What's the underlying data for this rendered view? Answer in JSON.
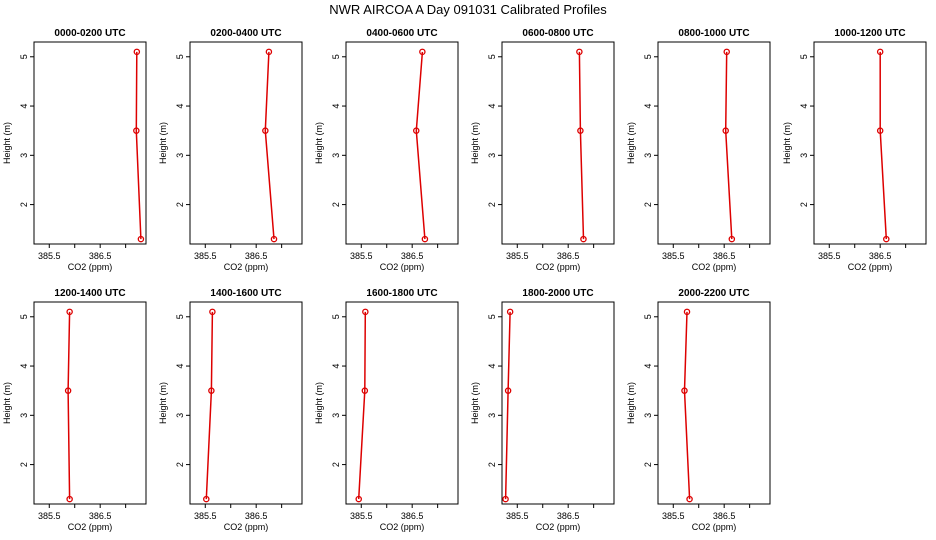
{
  "title": "NWR AIRCOA A  Day 091031  Calibrated Profiles",
  "colors": {
    "series": "#dd0000",
    "axis": "#000000",
    "background": "#ffffff"
  },
  "chart_data": [
    {
      "type": "line",
      "title": "0000-0200 UTC",
      "xlabel": "CO2 (ppm)",
      "ylabel": "Height (m)",
      "xlim": [
        385.2,
        387.4
      ],
      "ylim": [
        1.2,
        5.3
      ],
      "xticks": [
        385.5,
        386.5
      ],
      "yticks": [
        2,
        3,
        4,
        5
      ],
      "x": [
        387.3,
        387.21,
        387.22
      ],
      "y": [
        1.3,
        3.5,
        5.1
      ]
    },
    {
      "type": "line",
      "title": "0200-0400 UTC",
      "xlabel": "CO2 (ppm)",
      "ylabel": "Height (m)",
      "xlim": [
        385.2,
        387.4
      ],
      "ylim": [
        1.2,
        5.3
      ],
      "xticks": [
        385.5,
        386.5
      ],
      "yticks": [
        2,
        3,
        4,
        5
      ],
      "x": [
        386.85,
        386.68,
        386.75
      ],
      "y": [
        1.3,
        3.5,
        5.1
      ]
    },
    {
      "type": "line",
      "title": "0400-0600 UTC",
      "xlabel": "CO2 (ppm)",
      "ylabel": "Height (m)",
      "xlim": [
        385.2,
        387.4
      ],
      "ylim": [
        1.2,
        5.3
      ],
      "xticks": [
        385.5,
        386.5
      ],
      "yticks": [
        2,
        3,
        4,
        5
      ],
      "x": [
        386.75,
        386.58,
        386.7
      ],
      "y": [
        1.3,
        3.5,
        5.1
      ]
    },
    {
      "type": "line",
      "title": "0600-0800 UTC",
      "xlabel": "CO2 (ppm)",
      "ylabel": "Height (m)",
      "xlim": [
        385.2,
        387.4
      ],
      "ylim": [
        1.2,
        5.3
      ],
      "xticks": [
        385.5,
        386.5
      ],
      "yticks": [
        2,
        3,
        4,
        5
      ],
      "x": [
        386.8,
        386.74,
        386.72
      ],
      "y": [
        1.3,
        3.5,
        5.1
      ]
    },
    {
      "type": "line",
      "title": "0800-1000 UTC",
      "xlabel": "CO2 (ppm)",
      "ylabel": "Height (m)",
      "xlim": [
        385.2,
        387.4
      ],
      "ylim": [
        1.2,
        5.3
      ],
      "xticks": [
        385.5,
        386.5
      ],
      "yticks": [
        2,
        3,
        4,
        5
      ],
      "x": [
        386.65,
        386.53,
        386.55
      ],
      "y": [
        1.3,
        3.5,
        5.1
      ]
    },
    {
      "type": "line",
      "title": "1000-1200 UTC",
      "xlabel": "CO2 (ppm)",
      "ylabel": "Height (m)",
      "xlim": [
        385.2,
        387.4
      ],
      "ylim": [
        1.2,
        5.3
      ],
      "xticks": [
        385.5,
        386.5
      ],
      "yticks": [
        2,
        3,
        4,
        5
      ],
      "x": [
        386.62,
        386.5,
        386.5
      ],
      "y": [
        1.3,
        3.5,
        5.1
      ]
    },
    {
      "type": "line",
      "title": "1200-1400 UTC",
      "xlabel": "CO2 (ppm)",
      "ylabel": "Height (m)",
      "xlim": [
        385.2,
        387.4
      ],
      "ylim": [
        1.2,
        5.3
      ],
      "xticks": [
        385.5,
        386.5
      ],
      "yticks": [
        2,
        3,
        4,
        5
      ],
      "x": [
        385.9,
        385.87,
        385.9
      ],
      "y": [
        1.3,
        3.5,
        5.1
      ]
    },
    {
      "type": "line",
      "title": "1400-1600 UTC",
      "xlabel": "CO2 (ppm)",
      "ylabel": "Height (m)",
      "xlim": [
        385.2,
        387.4
      ],
      "ylim": [
        1.2,
        5.3
      ],
      "xticks": [
        385.5,
        386.5
      ],
      "yticks": [
        2,
        3,
        4,
        5
      ],
      "x": [
        385.52,
        385.62,
        385.64
      ],
      "y": [
        1.3,
        3.5,
        5.1
      ]
    },
    {
      "type": "line",
      "title": "1600-1800 UTC",
      "xlabel": "CO2 (ppm)",
      "ylabel": "Height (m)",
      "xlim": [
        385.2,
        387.4
      ],
      "ylim": [
        1.2,
        5.3
      ],
      "xticks": [
        385.5,
        386.5
      ],
      "yticks": [
        2,
        3,
        4,
        5
      ],
      "x": [
        385.45,
        385.57,
        385.58
      ],
      "y": [
        1.3,
        3.5,
        5.1
      ]
    },
    {
      "type": "line",
      "title": "1800-2000 UTC",
      "xlabel": "CO2 (ppm)",
      "ylabel": "Height (m)",
      "xlim": [
        385.2,
        387.4
      ],
      "ylim": [
        1.2,
        5.3
      ],
      "xticks": [
        385.5,
        386.5
      ],
      "yticks": [
        2,
        3,
        4,
        5
      ],
      "x": [
        385.27,
        385.32,
        385.36
      ],
      "y": [
        1.3,
        3.5,
        5.1
      ]
    },
    {
      "type": "line",
      "title": "2000-2200 UTC",
      "xlabel": "CO2 (ppm)",
      "ylabel": "Height (m)",
      "xlim": [
        385.2,
        387.4
      ],
      "ylim": [
        1.2,
        5.3
      ],
      "xticks": [
        385.5,
        386.5
      ],
      "yticks": [
        2,
        3,
        4,
        5
      ],
      "x": [
        385.82,
        385.72,
        385.77
      ],
      "y": [
        1.3,
        3.5,
        5.1
      ]
    }
  ]
}
